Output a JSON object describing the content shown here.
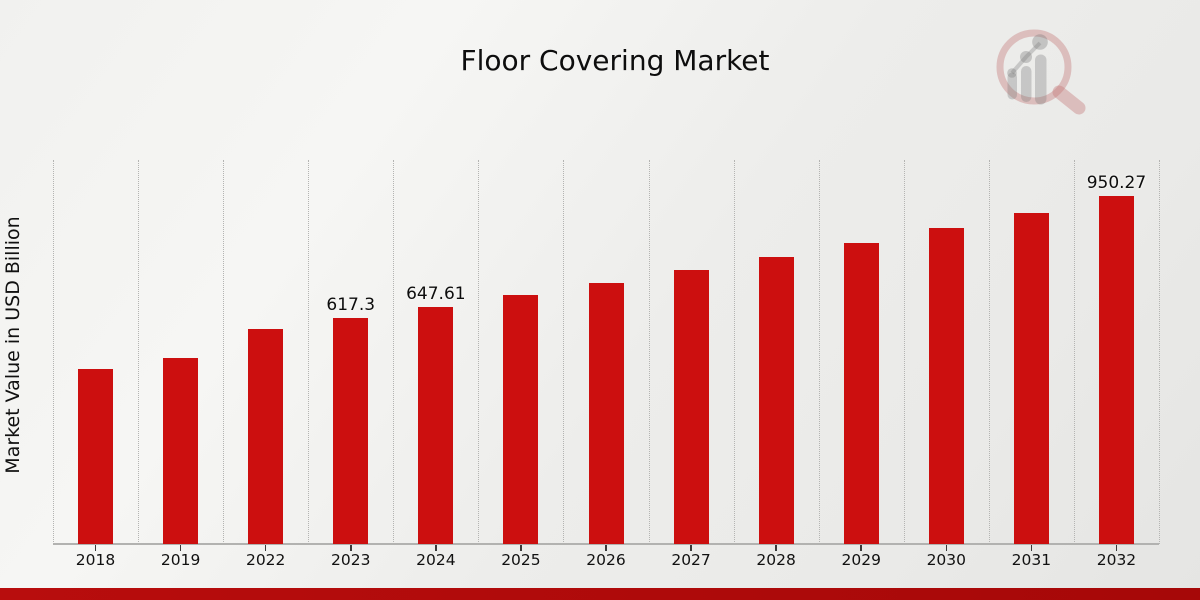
{
  "title": "Floor Covering Market",
  "ylabel": "Market Value in USD Billion",
  "logo": {
    "icon": "magnifier-bar-chart-logo"
  },
  "colors": {
    "bar": "#cc0f0f",
    "footer_band_left": "#b80d0d",
    "footer_band_right": "#a60808",
    "grid": "#b4b4b2",
    "axis": "#b2b2b0",
    "text": "#111111",
    "logo_ring_pink": "rgba(195,115,115,0.38)",
    "logo_bars_gray": "rgba(120,120,120,0.32)"
  },
  "chart_data": {
    "type": "bar",
    "title": "Floor Covering Market",
    "xlabel": "",
    "ylabel": "Market Value in USD Billion",
    "categories": [
      "2018",
      "2019",
      "2022",
      "2023",
      "2024",
      "2025",
      "2026",
      "2027",
      "2028",
      "2029",
      "2030",
      "2031",
      "2032"
    ],
    "values": [
      478,
      508,
      589,
      617.3,
      647.61,
      680,
      713,
      749,
      785,
      823,
      864,
      906,
      950.27
    ],
    "bar_labels": [
      "",
      "",
      "",
      "617.3",
      "647.61",
      "",
      "",
      "",
      "",
      "",
      "",
      "",
      "950.27"
    ],
    "ylim": [
      0,
      1051
    ],
    "bar_color": "#cc0f0f",
    "grid": "vertical dotted lines at category boundaries",
    "legend": "none"
  }
}
